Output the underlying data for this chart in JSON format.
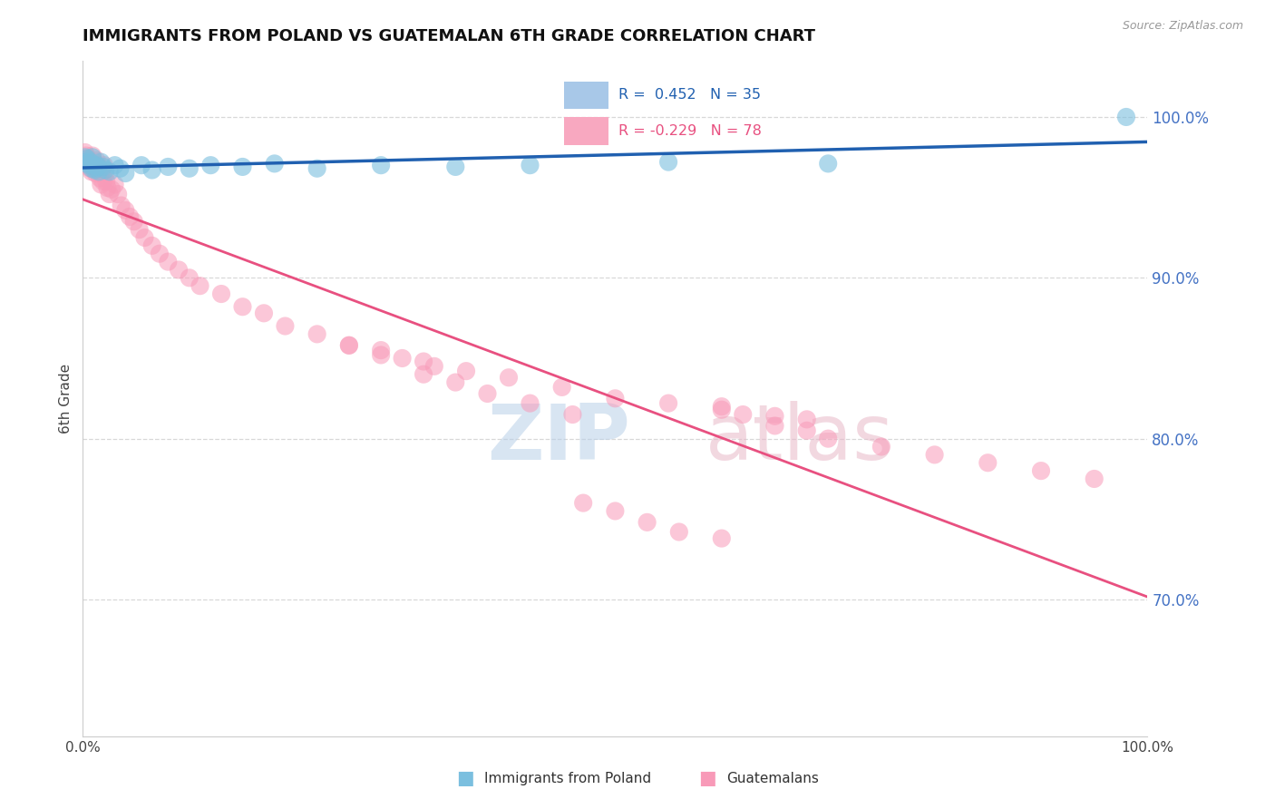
{
  "title": "IMMIGRANTS FROM POLAND VS GUATEMALAN 6TH GRADE CORRELATION CHART",
  "source_text": "Source: ZipAtlas.com",
  "ylabel": "6th Grade",
  "ytick_labels": [
    "100.0%",
    "90.0%",
    "80.0%",
    "70.0%"
  ],
  "ytick_values": [
    1.0,
    0.9,
    0.8,
    0.7
  ],
  "xmin": 0.0,
  "xmax": 1.0,
  "ymin": 0.615,
  "ymax": 1.035,
  "poland_color": "#7bbfdf",
  "guatemalan_color": "#f89ab8",
  "poland_line_color": "#2060b0",
  "guatemalan_line_color": "#e85080",
  "poland_R": 0.452,
  "poland_N": 35,
  "guatemalan_R": -0.229,
  "guatemalan_N": 78,
  "grid_color": "#d8d8d8",
  "title_color": "#111111",
  "right_tick_color": "#4472c4",
  "poland_scatter_x": [
    0.002,
    0.003,
    0.004,
    0.005,
    0.006,
    0.007,
    0.008,
    0.009,
    0.01,
    0.011,
    0.012,
    0.013,
    0.014,
    0.015,
    0.017,
    0.019,
    0.021,
    0.025,
    0.03,
    0.035,
    0.04,
    0.055,
    0.065,
    0.08,
    0.1,
    0.12,
    0.15,
    0.18,
    0.22,
    0.28,
    0.35,
    0.42,
    0.55,
    0.7,
    0.98
  ],
  "poland_scatter_y": [
    0.975,
    0.972,
    0.974,
    0.971,
    0.97,
    0.972,
    0.968,
    0.975,
    0.97,
    0.967,
    0.968,
    0.97,
    0.969,
    0.966,
    0.972,
    0.969,
    0.967,
    0.966,
    0.97,
    0.968,
    0.965,
    0.97,
    0.967,
    0.969,
    0.968,
    0.97,
    0.969,
    0.971,
    0.968,
    0.97,
    0.969,
    0.97,
    0.972,
    0.971,
    1.0
  ],
  "guatemalan_scatter_x": [
    0.002,
    0.003,
    0.004,
    0.005,
    0.006,
    0.007,
    0.008,
    0.009,
    0.01,
    0.011,
    0.012,
    0.013,
    0.014,
    0.015,
    0.016,
    0.017,
    0.018,
    0.019,
    0.02,
    0.021,
    0.022,
    0.023,
    0.025,
    0.027,
    0.03,
    0.033,
    0.036,
    0.04,
    0.044,
    0.048,
    0.053,
    0.058,
    0.065,
    0.072,
    0.08,
    0.09,
    0.1,
    0.11,
    0.13,
    0.15,
    0.17,
    0.19,
    0.22,
    0.25,
    0.28,
    0.32,
    0.36,
    0.4,
    0.45,
    0.5,
    0.55,
    0.6,
    0.65,
    0.68,
    0.6,
    0.62,
    0.65,
    0.68,
    0.7,
    0.75,
    0.8,
    0.85,
    0.9,
    0.95,
    0.47,
    0.5,
    0.53,
    0.56,
    0.6,
    0.32,
    0.35,
    0.38,
    0.42,
    0.46,
    0.25,
    0.28,
    0.3,
    0.33
  ],
  "guatemalan_scatter_y": [
    0.978,
    0.976,
    0.974,
    0.972,
    0.97,
    0.968,
    0.966,
    0.976,
    0.972,
    0.968,
    0.965,
    0.973,
    0.97,
    0.967,
    0.962,
    0.958,
    0.965,
    0.96,
    0.97,
    0.965,
    0.96,
    0.956,
    0.952,
    0.955,
    0.958,
    0.952,
    0.945,
    0.942,
    0.938,
    0.935,
    0.93,
    0.925,
    0.92,
    0.915,
    0.91,
    0.905,
    0.9,
    0.895,
    0.89,
    0.882,
    0.878,
    0.87,
    0.865,
    0.858,
    0.852,
    0.848,
    0.842,
    0.838,
    0.832,
    0.825,
    0.822,
    0.818,
    0.814,
    0.812,
    0.82,
    0.815,
    0.808,
    0.805,
    0.8,
    0.795,
    0.79,
    0.785,
    0.78,
    0.775,
    0.76,
    0.755,
    0.748,
    0.742,
    0.738,
    0.84,
    0.835,
    0.828,
    0.822,
    0.815,
    0.858,
    0.855,
    0.85,
    0.845
  ]
}
